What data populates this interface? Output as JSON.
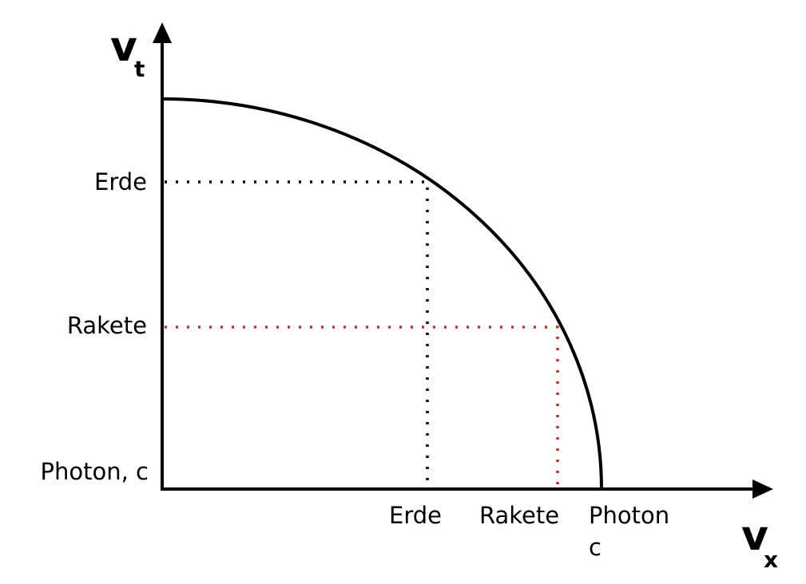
{
  "y_axis": {
    "label": "v",
    "subscript": "t",
    "ticks": [
      "Erde",
      "Rakete",
      "Photon, c"
    ]
  },
  "x_axis": {
    "label": "v",
    "subscript": "x",
    "ticks": [
      "Erde",
      "Rakete",
      "Photon",
      "c"
    ]
  }
}
